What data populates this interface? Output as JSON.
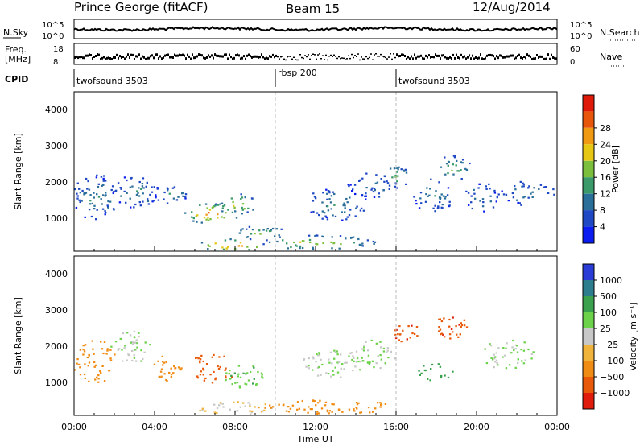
{
  "header": {
    "station": "Prince George (fitACF)",
    "beam": "Beam 15",
    "date": "12/Aug/2014"
  },
  "noise_panel": {
    "left_label": "N.Sky",
    "right_label": "N.Search",
    "left_ticks": [
      "10^5",
      "10^0"
    ],
    "right_ticks": [
      "10^5",
      "10^0"
    ]
  },
  "freq_panel": {
    "left_label_line1": "Freq.",
    "left_label_line2": "[MHz]",
    "right_label": "Nave",
    "left_ticks": [
      "18",
      "8"
    ],
    "right_ticks": [
      "60",
      "0"
    ]
  },
  "cpid": {
    "label": "CPID",
    "segments": [
      {
        "name": "twofsound 3503",
        "start_hour": 0
      },
      {
        "name": "rbsp 200",
        "start_hour": 10
      },
      {
        "name": "twofsound 3503",
        "start_hour": 16
      }
    ]
  },
  "axes": {
    "xlabel": "Time UT",
    "x_ticks": [
      "00:00",
      "04:00",
      "08:00",
      "12:00",
      "16:00",
      "20:00",
      "00:00"
    ],
    "ylabel": "Slant Range [km]",
    "y_ticks": [
      "1000",
      "2000",
      "3000",
      "4000"
    ]
  },
  "power_colorbar": {
    "label": "Power [dB]",
    "ticks": [
      "4",
      "8",
      "12",
      "16",
      "20",
      "24",
      "28"
    ],
    "colors": [
      "#0a1cf0",
      "#1f48c4",
      "#2a6e9a",
      "#3a9a6a",
      "#7cbf3c",
      "#e6c814",
      "#f09a14",
      "#e8560c",
      "#e01a08"
    ]
  },
  "velocity_colorbar": {
    "label": "Velocity [m s⁻¹]",
    "ticks": [
      "1000",
      "500",
      "100",
      "25",
      "−25",
      "−100",
      "−500",
      "−1000"
    ],
    "colors": [
      "#2a3cd6",
      "#2c7e8e",
      "#3aa24e",
      "#6cd24a",
      "#c8c8c8",
      "#f0b43c",
      "#f08c14",
      "#e85a0a",
      "#e01c0c"
    ]
  },
  "chart_data": {
    "type": "heatmap",
    "x_range_hours": [
      0,
      24
    ],
    "y_range_km": [
      180,
      4600
    ],
    "noise_range": [
      "10^0",
      "10^5"
    ],
    "freq_range_mhz": [
      8,
      18
    ],
    "nave_range": [
      0,
      60
    ],
    "grid": false,
    "power_blobs": [
      {
        "t": 1.0,
        "r": 1700,
        "dt": 1.1,
        "dr": 650,
        "p": 12
      },
      {
        "t": 3.0,
        "r": 1850,
        "dt": 1.2,
        "dr": 450,
        "p": 12
      },
      {
        "t": 4.8,
        "r": 1750,
        "dt": 0.8,
        "dr": 250,
        "p": 14
      },
      {
        "t": 6.8,
        "r": 1250,
        "dt": 1.4,
        "dr": 280,
        "p": 27
      },
      {
        "t": 8.0,
        "r": 1500,
        "dt": 1.0,
        "dr": 300,
        "p": 22
      },
      {
        "t": 7.8,
        "r": 380,
        "dt": 1.9,
        "dr": 160,
        "p": 29
      },
      {
        "t": 9.2,
        "r": 700,
        "dt": 1.3,
        "dr": 200,
        "p": 18
      },
      {
        "t": 13.0,
        "r": 1500,
        "dt": 1.6,
        "dr": 450,
        "p": 12
      },
      {
        "t": 14.8,
        "r": 2050,
        "dt": 1.3,
        "dr": 350,
        "p": 10
      },
      {
        "t": 16.0,
        "r": 2250,
        "dt": 0.7,
        "dr": 320,
        "p": 16
      },
      {
        "t": 17.8,
        "r": 1750,
        "dt": 1.1,
        "dr": 450,
        "p": 12
      },
      {
        "t": 18.8,
        "r": 2500,
        "dt": 0.9,
        "dr": 350,
        "p": 16
      },
      {
        "t": 20.2,
        "r": 1700,
        "dt": 0.9,
        "dr": 400,
        "p": 11
      },
      {
        "t": 22.5,
        "r": 1800,
        "dt": 1.4,
        "dr": 350,
        "p": 11
      },
      {
        "t": 12.0,
        "r": 450,
        "dt": 3.0,
        "dr": 200,
        "p": 20
      }
    ],
    "velocity_blobs": [
      {
        "t": 1.0,
        "r": 1700,
        "dt": 1.1,
        "dr": 600,
        "v": -100
      },
      {
        "t": 2.8,
        "r": 2100,
        "dt": 1.0,
        "dr": 450,
        "v": 25
      },
      {
        "t": 4.5,
        "r": 1500,
        "dt": 0.8,
        "dr": 350,
        "v": -100
      },
      {
        "t": 6.8,
        "r": 1500,
        "dt": 1.2,
        "dr": 400,
        "v": -500
      },
      {
        "t": 8.4,
        "r": 1300,
        "dt": 1.0,
        "dr": 350,
        "v": 50
      },
      {
        "t": 8.0,
        "r": 400,
        "dt": 2.0,
        "dr": 180,
        "v": -25
      },
      {
        "t": 12.8,
        "r": 1600,
        "dt": 1.6,
        "dr": 400,
        "v": 25
      },
      {
        "t": 14.8,
        "r": 1900,
        "dt": 1.2,
        "dr": 400,
        "v": 25
      },
      {
        "t": 16.4,
        "r": 2550,
        "dt": 0.7,
        "dr": 350,
        "v": -600
      },
      {
        "t": 18.8,
        "r": 2650,
        "dt": 0.9,
        "dr": 350,
        "v": -600
      },
      {
        "t": 17.8,
        "r": 1400,
        "dt": 1.0,
        "dr": 250,
        "v": 120
      },
      {
        "t": 21.5,
        "r": 1900,
        "dt": 1.3,
        "dr": 450,
        "v": 25
      },
      {
        "t": 12.5,
        "r": 430,
        "dt": 3.5,
        "dr": 200,
        "v": -120
      }
    ]
  }
}
